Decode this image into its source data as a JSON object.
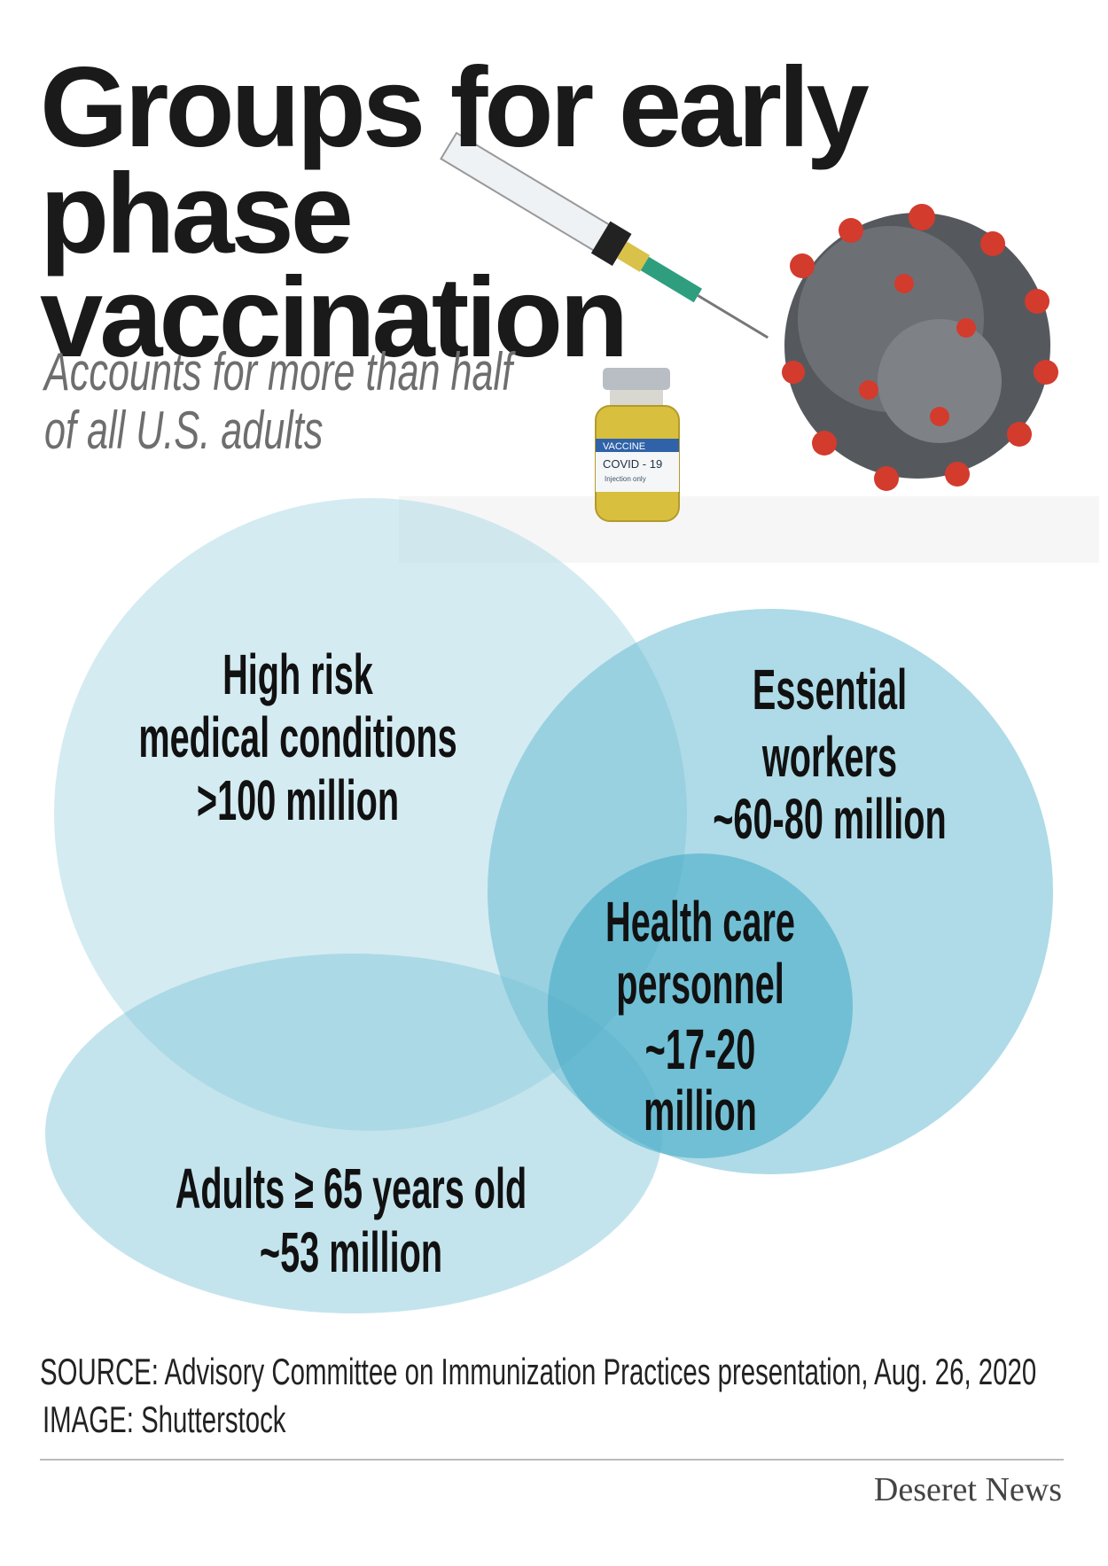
{
  "header": {
    "title_lines": [
      "Groups for early",
      "phase",
      "vaccination"
    ],
    "subtitle_lines": [
      "Accounts for more than half",
      "of all U.S. adults"
    ]
  },
  "image": {
    "vial_lines": [
      "VACCINE",
      "COVID - 19",
      "Injection only"
    ]
  },
  "groups": [
    {
      "lines": [
        "High risk",
        "medical conditions",
        ">100 million"
      ]
    },
    {
      "lines": [
        "Essential",
        "workers",
        "~60-80 million"
      ]
    },
    {
      "lines": [
        "Health care",
        "personnel",
        "~17-20",
        "million"
      ]
    },
    {
      "lines": [
        "Adults ≥ 65 years old",
        "~53 million"
      ]
    }
  ],
  "footer": {
    "source": "SOURCE: Advisory Committee on Immunization Practices presentation, Aug. 26, 2020",
    "image_credit": "IMAGE: Shutterstock",
    "logo": "Deseret News"
  }
}
